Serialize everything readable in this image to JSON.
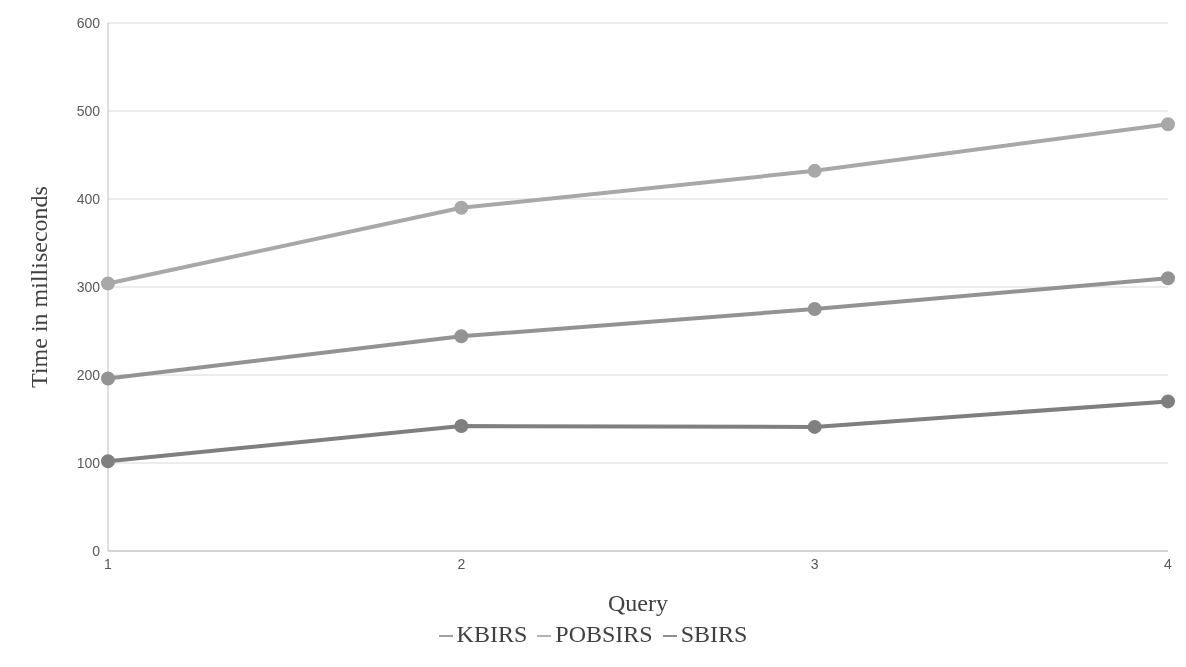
{
  "chart_data": {
    "type": "line",
    "xlabel": "Query",
    "ylabel": "Time in milliseconds",
    "categories": [
      "1",
      "2",
      "3",
      "4"
    ],
    "series": [
      {
        "name": "SBIRS",
        "color": "#7f7f7f",
        "values": [
          102,
          142,
          141,
          170
        ]
      },
      {
        "name": "KBIRS",
        "color": "#939393",
        "values": [
          196,
          244,
          275,
          310
        ]
      },
      {
        "name": "POBSIRS",
        "color": "#a8a8a8",
        "values": [
          304,
          390,
          432,
          485
        ]
      }
    ],
    "ylim": [
      0,
      600
    ],
    "yticks": [
      0,
      100,
      200,
      300,
      400,
      500,
      600
    ],
    "grid": "y",
    "legend": "bottom",
    "marker": "circle",
    "line_style": "solid"
  }
}
